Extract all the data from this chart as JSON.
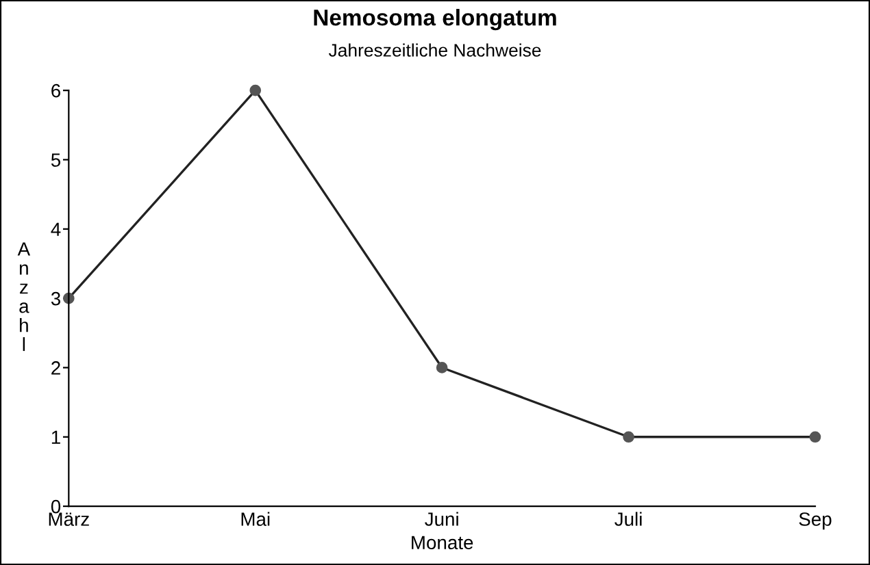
{
  "chart_data": {
    "type": "line",
    "title": "Nemosoma elongatum",
    "subtitle": "Jahreszeitliche Nachweise",
    "xlabel": "Monate",
    "ylabel": "Anzahl",
    "categories": [
      "März",
      "Mai",
      "Juni",
      "Juli",
      "Sep"
    ],
    "series": [
      {
        "color": "#222222",
        "values": [
          3,
          6,
          2,
          1,
          1
        ]
      }
    ],
    "ylim": [
      0,
      6
    ],
    "yticks": [
      0,
      1,
      2,
      3,
      4,
      5,
      6
    ],
    "grid": false,
    "legend": false,
    "marker": "circle",
    "line_style": "solid"
  }
}
